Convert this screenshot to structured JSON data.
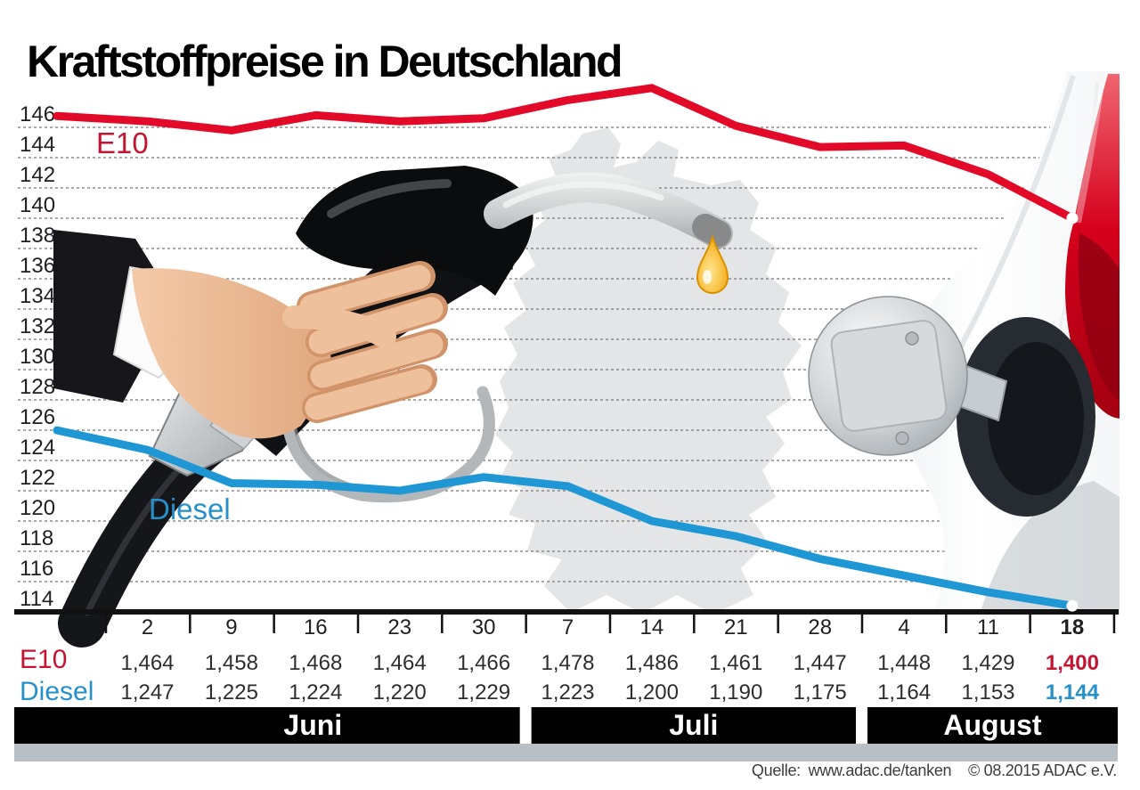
{
  "title": "Kraftstoffpreise in Deutschland",
  "colors": {
    "e10_line": "#e20a28",
    "e10_text": "#c41432",
    "diesel_line": "#1f97d5",
    "diesel_text": "#2590c9",
    "grid": "#8c8c8c",
    "axis": "#111111",
    "month_bar": "#000000",
    "month_text": "#ffffff",
    "gray_bar": "#b9c0c5",
    "label_text": "#1f1f1f",
    "drop_gold": "#f2a300"
  },
  "chart_data": {
    "type": "line",
    "x_tick_labels": [
      "2",
      "9",
      "16",
      "23",
      "30",
      "7",
      "14",
      "21",
      "28",
      "4",
      "11",
      "18"
    ],
    "highlight_last_column": true,
    "y_ticks": [
      146,
      144,
      142,
      140,
      138,
      136,
      134,
      132,
      130,
      128,
      126,
      124,
      122,
      120,
      118,
      116,
      114
    ],
    "y_range": [
      114,
      146
    ],
    "grid": "dashed-horizontal",
    "legend_position": "labels-on-chart",
    "series": [
      {
        "name": "E10",
        "values_cent": [
          146.4,
          145.8,
          146.8,
          146.4,
          146.6,
          147.8,
          148.6,
          146.1,
          144.7,
          144.8,
          142.9,
          140.0
        ],
        "values_display": [
          "1,464",
          "1,458",
          "1,468",
          "1,464",
          "1,466",
          "1,478",
          "1,486",
          "1,461",
          "1,447",
          "1,448",
          "1,429",
          "1,400"
        ]
      },
      {
        "name": "Diesel",
        "values_cent": [
          124.7,
          122.5,
          122.4,
          122.0,
          122.9,
          122.3,
          120.0,
          119.0,
          117.5,
          116.4,
          115.3,
          114.4
        ],
        "values_display": [
          "1,247",
          "1,225",
          "1,224",
          "1,220",
          "1,229",
          "1,223",
          "1,200",
          "1,190",
          "1,175",
          "1,164",
          "1,153",
          "1,144"
        ]
      }
    ],
    "months": [
      {
        "label": "Juni",
        "columns": 5
      },
      {
        "label": "Juli",
        "columns": 4
      },
      {
        "label": "August",
        "columns": 3
      }
    ]
  },
  "source": {
    "label": "Quelle:",
    "url_text": "www.adac.de/tanken",
    "copyright": "© 08.2015  ADAC e.V."
  }
}
